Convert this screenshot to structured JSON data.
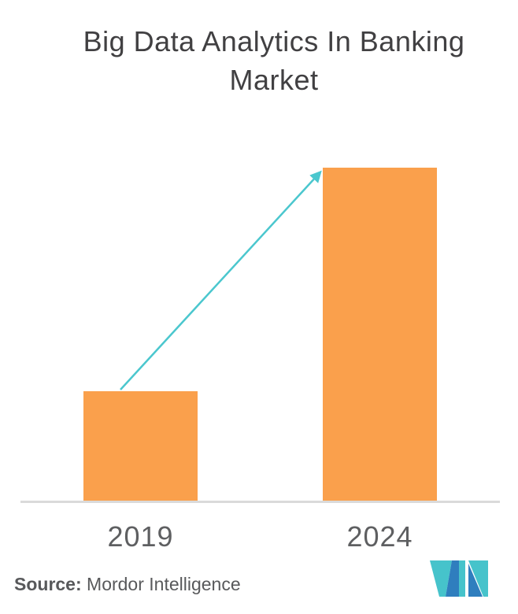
{
  "chart_data": {
    "type": "bar",
    "title": "Big Data Analytics In Banking Market",
    "categories": [
      "2019",
      "2024"
    ],
    "values": [
      140,
      424
    ],
    "values_note": "no numeric y-axis is shown in the figure; values are relative bar heights in pixels (2024 is ~3x 2019)",
    "xlabel": "",
    "ylabel": "",
    "grid": false,
    "legend": false,
    "bar_color": "#FAA04C",
    "annotation": {
      "type": "growth-arrow",
      "from_category": "2019",
      "to_category": "2024",
      "color": "#4BC7CE"
    }
  },
  "source": {
    "label": "Source:",
    "text": "Mordor Intelligence"
  },
  "colors": {
    "background": "#FFFFFF",
    "bar": "#FAA04C",
    "arrow": "#4BC7CE",
    "axis_line": "#DADADA",
    "title_text": "#414042",
    "axis_label_text": "#5E5F61",
    "source_text": "#58595B",
    "logo_teal": "#46C3CB",
    "logo_blue": "#2F7EBE"
  },
  "icons": {
    "logo": "mordor-intelligence-logo"
  }
}
